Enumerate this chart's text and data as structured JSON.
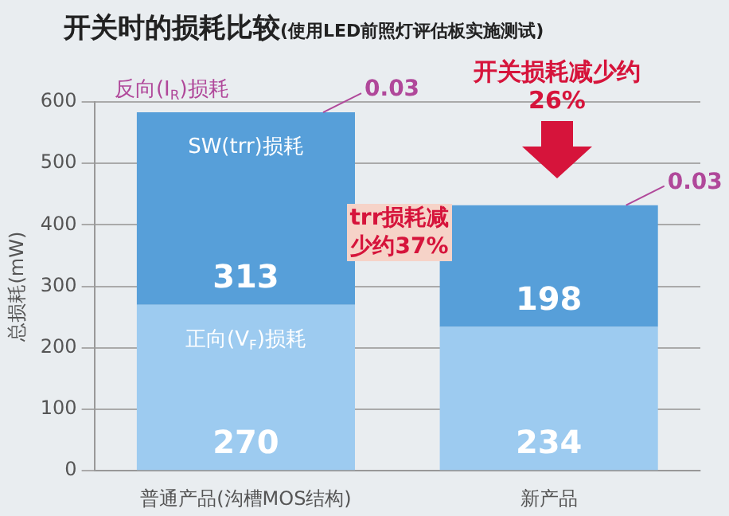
{
  "chart_data": {
    "type": "bar",
    "title": "开关时的损耗比较",
    "subtitle": "(使用LED前照灯评估板实施测试)",
    "ylabel": "总损耗(mW)",
    "categories": [
      "普通产品(沟槽MOS结构)",
      "新产品"
    ],
    "stacked": true,
    "series": [
      {
        "name": "正向(V$_{F}$)损耗",
        "color": "#9dcbf0",
        "values": [
          270,
          234
        ],
        "value_labels": [
          "270",
          "234"
        ]
      },
      {
        "name": "SW(trr)损耗",
        "color": "#579fd9",
        "values": [
          313,
          198
        ],
        "value_labels": [
          "313",
          "198"
        ]
      },
      {
        "name": "反向(I$_{R}$)损耗",
        "color": "#b0489a",
        "values": [
          0.03,
          0.03
        ],
        "value_labels": [
          "0.03",
          "0.03"
        ]
      }
    ],
    "ylim": [
      0,
      600
    ],
    "yticks": [
      0,
      100,
      200,
      300,
      400,
      500,
      600
    ],
    "grid": "y",
    "legend": false,
    "annotations": [
      "trr损耗减少约37%",
      "开关损耗减少约26%"
    ]
  }
}
